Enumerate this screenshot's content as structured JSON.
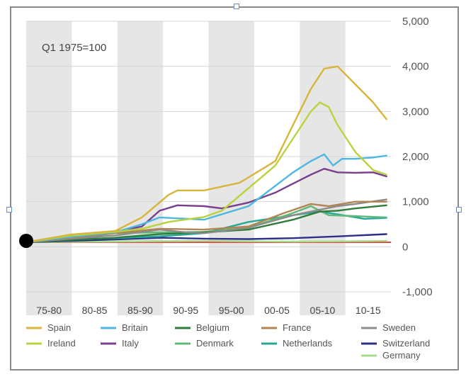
{
  "chart_data": {
    "type": "line",
    "note": "Q1 1975=100",
    "categories": [
      "75-80",
      "80-85",
      "85-90",
      "90-95",
      "95-00",
      "00-05",
      "05-10",
      "10-15"
    ],
    "y_ticks": [
      "5,000",
      "4,000",
      "3,000",
      "2,000",
      "1,000",
      "0",
      "-1,000"
    ],
    "ylim": [
      -1000,
      5000
    ],
    "x_range": [
      1975,
      2016
    ],
    "grid": true,
    "legend_position": "bottom",
    "series": [
      {
        "name": "Spain",
        "color": "#d9b43a",
        "x": [
          1975,
          1980,
          1985,
          1988,
          1991,
          1992,
          1995,
          1999,
          2003,
          2005,
          2007,
          2008.5,
          2010,
          2012,
          2014,
          2015.5
        ],
        "y": [
          100,
          270,
          350,
          650,
          1150,
          1250,
          1250,
          1420,
          1900,
          2700,
          3500,
          3950,
          4000,
          3600,
          3200,
          2830
        ]
      },
      {
        "name": "Ireland",
        "color": "#bcd23c",
        "x": [
          1975,
          1980,
          1985,
          1988,
          1991,
          1995,
          1997,
          2000,
          2003,
          2005,
          2007,
          2008,
          2009,
          2010,
          2012,
          2014,
          2015.5
        ],
        "y": [
          100,
          250,
          330,
          400,
          550,
          660,
          800,
          1300,
          1800,
          2400,
          3000,
          3200,
          3100,
          2700,
          2100,
          1700,
          1600
        ]
      },
      {
        "name": "Britain",
        "color": "#4cb8e0",
        "x": [
          1975,
          1980,
          1985,
          1988,
          1990,
          1995,
          2000,
          2003,
          2005,
          2007,
          2008.5,
          2009.5,
          2010.5,
          2012,
          2014,
          2015.5
        ],
        "y": [
          100,
          220,
          320,
          500,
          650,
          600,
          900,
          1350,
          1650,
          1900,
          2050,
          1800,
          1950,
          1950,
          1980,
          2020
        ]
      },
      {
        "name": "Italy",
        "color": "#7a3f8c",
        "x": [
          1975,
          1980,
          1985,
          1988,
          1990,
          1992,
          1995,
          1997,
          2000,
          2003,
          2005,
          2007,
          2008.5,
          2010,
          2012,
          2014,
          2015.5
        ],
        "y": [
          100,
          250,
          330,
          450,
          800,
          920,
          900,
          850,
          980,
          1200,
          1400,
          1600,
          1730,
          1650,
          1640,
          1650,
          1560
        ]
      },
      {
        "name": "Belgium",
        "color": "#2e7d3a",
        "x": [
          1975,
          1980,
          1985,
          1990,
          1995,
          2000,
          2005,
          2008,
          2010,
          2012,
          2015.5
        ],
        "y": [
          100,
          150,
          200,
          280,
          320,
          380,
          600,
          780,
          800,
          850,
          920
        ]
      },
      {
        "name": "Denmark",
        "color": "#5fb878",
        "x": [
          1975,
          1980,
          1985,
          1990,
          1995,
          2000,
          2005,
          2007,
          2009,
          2012,
          2015.5
        ],
        "y": [
          100,
          180,
          300,
          320,
          330,
          420,
          750,
          900,
          700,
          680,
          650
        ]
      },
      {
        "name": "France",
        "color": "#b08552",
        "x": [
          1975,
          1980,
          1985,
          1990,
          1995,
          2000,
          2004,
          2007,
          2009,
          2012,
          2015.5
        ],
        "y": [
          100,
          200,
          300,
          400,
          380,
          450,
          750,
          950,
          900,
          1000,
          1000
        ]
      },
      {
        "name": "Netherlands",
        "color": "#26a898",
        "x": [
          1975,
          1978,
          1982,
          1985,
          1990,
          1995,
          2000,
          2005,
          2008,
          2010,
          2013,
          2015.5
        ],
        "y": [
          100,
          200,
          180,
          190,
          230,
          300,
          550,
          700,
          780,
          720,
          620,
          640
        ]
      },
      {
        "name": "Sweden",
        "color": "#8c8c8c",
        "x": [
          1975,
          1980,
          1985,
          1990,
          1993,
          1995,
          2000,
          2005,
          2008,
          2010,
          2012,
          2015.5
        ],
        "y": [
          100,
          180,
          250,
          380,
          320,
          300,
          420,
          700,
          820,
          900,
          950,
          1050
        ]
      },
      {
        "name": "Switzerland",
        "color": "#2c2f8a",
        "x": [
          1975,
          1980,
          1985,
          1990,
          1995,
          2000,
          2005,
          2010,
          2015.5
        ],
        "y": [
          100,
          130,
          160,
          200,
          180,
          170,
          190,
          230,
          280
        ]
      },
      {
        "name": "Germany",
        "color": "#a8dc8c",
        "x": [
          1975,
          1980,
          1985,
          1990,
          1995,
          2000,
          2005,
          2010,
          2015.5
        ],
        "y": [
          100,
          110,
          115,
          125,
          130,
          120,
          115,
          120,
          130
        ]
      }
    ]
  },
  "colors": {
    "band": "#e6e6e6",
    "grid": "#d6d6d6",
    "baseline": "#e8433a",
    "marker": "#000000"
  }
}
